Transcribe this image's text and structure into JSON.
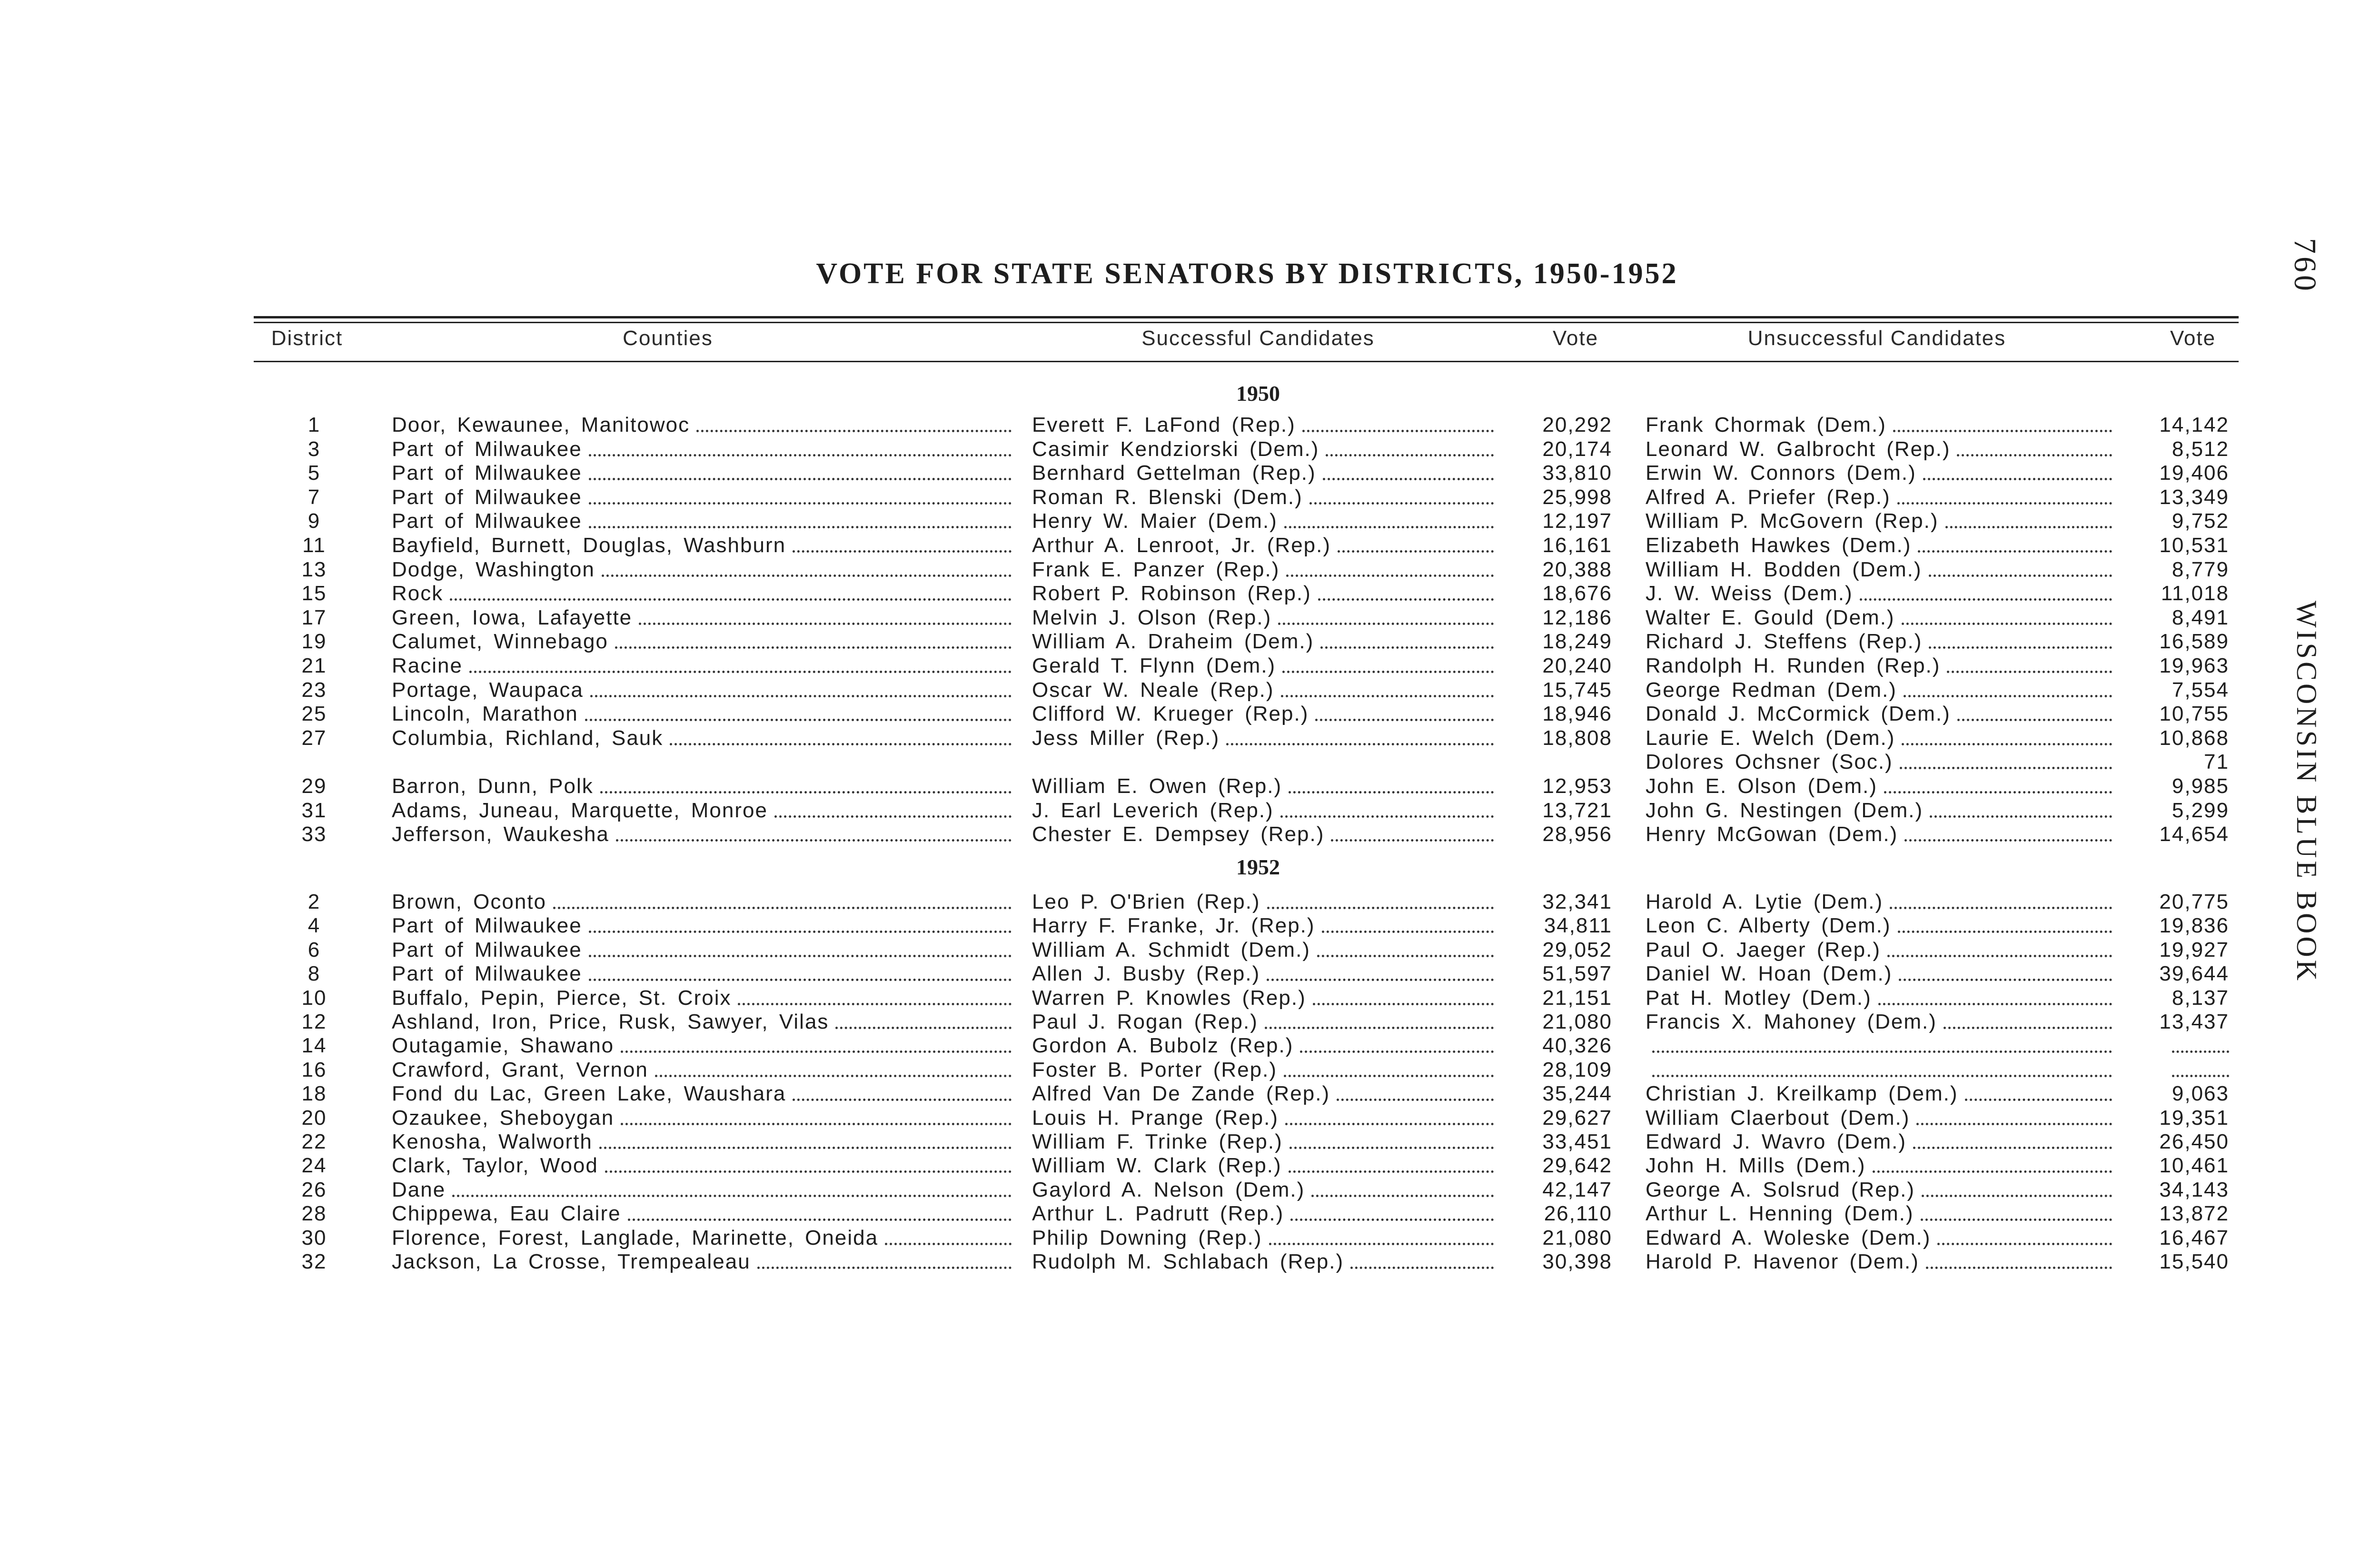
{
  "title": "VOTE FOR STATE SENATORS BY DISTRICTS, 1950-1952",
  "page_number": "760",
  "running_head": "WISCONSIN BLUE BOOK",
  "headers": {
    "district": "District",
    "counties": "Counties",
    "successful": "Successful Candidates",
    "vote1": "Vote",
    "unsuccessful": "Unsuccessful Candidates",
    "vote2": "Vote"
  },
  "sections": [
    {
      "year": "1950",
      "rows": [
        {
          "district": "1",
          "counties": "Door, Kewaunee, Manitowoc",
          "winner": "Everett F. LaFond (Rep.)",
          "winner_vote": "20,292",
          "loser": "Frank Chormak (Dem.)",
          "loser_vote": "14,142"
        },
        {
          "district": "3",
          "counties": "Part of Milwaukee",
          "winner": "Casimir Kendziorski (Dem.)",
          "winner_vote": "20,174",
          "loser": "Leonard W. Galbrocht (Rep.)",
          "loser_vote": "8,512"
        },
        {
          "district": "5",
          "counties": "Part of Milwaukee",
          "winner": "Bernhard Gettelman (Rep.)",
          "winner_vote": "33,810",
          "loser": "Erwin W. Connors (Dem.)",
          "loser_vote": "19,406"
        },
        {
          "district": "7",
          "counties": "Part of Milwaukee",
          "winner": "Roman R. Blenski (Dem.)",
          "winner_vote": "25,998",
          "loser": "Alfred A. Priefer (Rep.)",
          "loser_vote": "13,349"
        },
        {
          "district": "9",
          "counties": "Part of Milwaukee",
          "winner": "Henry W. Maier (Dem.)",
          "winner_vote": "12,197",
          "loser": "William P. McGovern (Rep.)",
          "loser_vote": "9,752"
        },
        {
          "district": "11",
          "counties": "Bayfield, Burnett, Douglas, Washburn",
          "winner": "Arthur A. Lenroot, Jr. (Rep.)",
          "winner_vote": "16,161",
          "loser": "Elizabeth Hawkes (Dem.)",
          "loser_vote": "10,531"
        },
        {
          "district": "13",
          "counties": "Dodge, Washington",
          "winner": "Frank E. Panzer (Rep.)",
          "winner_vote": "20,388",
          "loser": "William H. Bodden (Dem.)",
          "loser_vote": "8,779"
        },
        {
          "district": "15",
          "counties": "Rock",
          "winner": "Robert P. Robinson (Rep.)",
          "winner_vote": "18,676",
          "loser": "J. W. Weiss (Dem.)",
          "loser_vote": "11,018"
        },
        {
          "district": "17",
          "counties": "Green, Iowa, Lafayette",
          "winner": "Melvin J. Olson (Rep.)",
          "winner_vote": "12,186",
          "loser": "Walter E. Gould (Dem.)",
          "loser_vote": "8,491"
        },
        {
          "district": "19",
          "counties": "Calumet, Winnebago",
          "winner": "William A. Draheim (Dem.)",
          "winner_vote": "18,249",
          "loser": "Richard J. Steffens (Rep.)",
          "loser_vote": "16,589"
        },
        {
          "district": "21",
          "counties": "Racine",
          "winner": "Gerald T. Flynn (Dem.)",
          "winner_vote": "20,240",
          "loser": "Randolph H. Runden (Rep.)",
          "loser_vote": "19,963"
        },
        {
          "district": "23",
          "counties": "Portage, Waupaca",
          "winner": "Oscar W. Neale (Rep.)",
          "winner_vote": "15,745",
          "loser": "George Redman (Dem.)",
          "loser_vote": "7,554"
        },
        {
          "district": "25",
          "counties": "Lincoln, Marathon",
          "winner": "Clifford W. Krueger (Rep.)",
          "winner_vote": "18,946",
          "loser": "Donald J. McCormick (Dem.)",
          "loser_vote": "10,755"
        },
        {
          "district": "27",
          "counties": "Columbia, Richland, Sauk",
          "winner": "Jess Miller (Rep.)",
          "winner_vote": "18,808",
          "loser": "Laurie E. Welch (Dem.)",
          "loser_vote": "10,868"
        },
        {
          "district": "",
          "counties": "",
          "winner": "",
          "winner_vote": "",
          "loser": "Dolores Ochsner (Soc.)",
          "loser_vote": "71"
        },
        {
          "district": "29",
          "counties": "Barron, Dunn, Polk",
          "winner": "William E. Owen (Rep.)",
          "winner_vote": "12,953",
          "loser": "John E. Olson (Dem.)",
          "loser_vote": "9,985"
        },
        {
          "district": "31",
          "counties": "Adams, Juneau, Marquette, Monroe",
          "winner": "J. Earl Leverich (Rep.)",
          "winner_vote": "13,721",
          "loser": "John G. Nestingen (Dem.)",
          "loser_vote": "5,299"
        },
        {
          "district": "33",
          "counties": "Jefferson, Waukesha",
          "winner": "Chester E. Dempsey (Rep.)",
          "winner_vote": "28,956",
          "loser": "Henry McGowan (Dem.)",
          "loser_vote": "14,654"
        }
      ]
    },
    {
      "year": "1952",
      "rows": [
        {
          "district": "2",
          "counties": "Brown, Oconto",
          "winner": "Leo P. O'Brien (Rep.)",
          "winner_vote": "32,341",
          "loser": "Harold A. Lytie (Dem.)",
          "loser_vote": "20,775"
        },
        {
          "district": "4",
          "counties": "Part of Milwaukee",
          "winner": "Harry F. Franke, Jr. (Rep.)",
          "winner_vote": "34,811",
          "loser": "Leon C. Alberty (Dem.)",
          "loser_vote": "19,836"
        },
        {
          "district": "6",
          "counties": "Part of Milwaukee",
          "winner": "William A. Schmidt (Dem.)",
          "winner_vote": "29,052",
          "loser": "Paul O. Jaeger (Rep.)",
          "loser_vote": "19,927"
        },
        {
          "district": "8",
          "counties": "Part of Milwaukee",
          "winner": "Allen J. Busby (Rep.)",
          "winner_vote": "51,597",
          "loser": "Daniel W. Hoan (Dem.)",
          "loser_vote": "39,644"
        },
        {
          "district": "10",
          "counties": "Buffalo, Pepin, Pierce, St. Croix",
          "winner": "Warren P. Knowles (Rep.)",
          "winner_vote": "21,151",
          "loser": "Pat H. Motley (Dem.)",
          "loser_vote": "8,137"
        },
        {
          "district": "12",
          "counties": "Ashland, Iron, Price, Rusk, Sawyer, Vilas",
          "winner": "Paul J. Rogan (Rep.)",
          "winner_vote": "21,080",
          "loser": "Francis X. Mahoney (Dem.)",
          "loser_vote": "13,437"
        },
        {
          "district": "14",
          "counties": "Outagamie, Shawano",
          "winner": "Gordon A. Bubolz (Rep.)",
          "winner_vote": "40,326",
          "loser": "",
          "loser_vote": ""
        },
        {
          "district": "16",
          "counties": "Crawford, Grant, Vernon",
          "winner": "Foster B. Porter (Rep.)",
          "winner_vote": "28,109",
          "loser": "",
          "loser_vote": ""
        },
        {
          "district": "18",
          "counties": "Fond du Lac, Green Lake, Waushara",
          "winner": "Alfred Van De Zande (Rep.)",
          "winner_vote": "35,244",
          "loser": "Christian J. Kreilkamp (Dem.)",
          "loser_vote": "9,063"
        },
        {
          "district": "20",
          "counties": "Ozaukee, Sheboygan",
          "winner": "Louis H. Prange (Rep.)",
          "winner_vote": "29,627",
          "loser": "William Claerbout (Dem.)",
          "loser_vote": "19,351"
        },
        {
          "district": "22",
          "counties": "Kenosha, Walworth",
          "winner": "William F. Trinke (Rep.)",
          "winner_vote": "33,451",
          "loser": "Edward J. Wavro (Dem.)",
          "loser_vote": "26,450"
        },
        {
          "district": "24",
          "counties": "Clark, Taylor, Wood",
          "winner": "William W. Clark (Rep.)",
          "winner_vote": "29,642",
          "loser": "John H. Mills (Dem.)",
          "loser_vote": "10,461"
        },
        {
          "district": "26",
          "counties": "Dane",
          "winner": "Gaylord A. Nelson (Dem.)",
          "winner_vote": "42,147",
          "loser": "George A. Solsrud (Rep.)",
          "loser_vote": "34,143"
        },
        {
          "district": "28",
          "counties": "Chippewa, Eau Claire",
          "winner": "Arthur L. Padrutt (Rep.)",
          "winner_vote": "26,110",
          "loser": "Arthur L. Henning (Dem.)",
          "loser_vote": "13,872"
        },
        {
          "district": "30",
          "counties": "Florence, Forest, Langlade, Marinette, Oneida",
          "winner": "Philip Downing (Rep.)",
          "winner_vote": "21,080",
          "loser": "Edward A. Woleske (Dem.)",
          "loser_vote": "16,467"
        },
        {
          "district": "32",
          "counties": "Jackson, La Crosse, Trempealeau",
          "winner": "Rudolph M. Schlabach (Rep.)",
          "winner_vote": "30,398",
          "loser": "Harold P. Havenor (Dem.)",
          "loser_vote": "15,540"
        }
      ]
    }
  ]
}
